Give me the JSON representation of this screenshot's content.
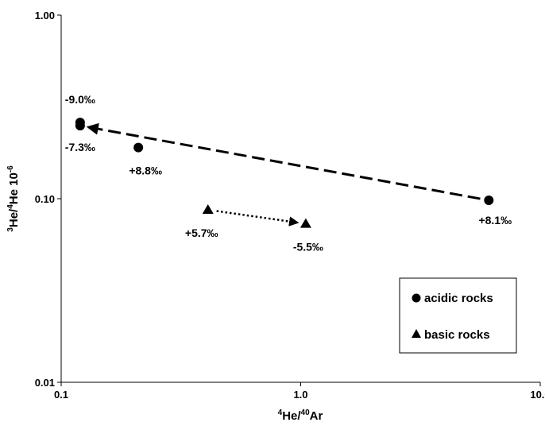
{
  "chart_data": {
    "type": "scatter",
    "xscale": "log",
    "yscale": "log",
    "xlim": [
      0.1,
      10.0
    ],
    "ylim": [
      0.01,
      1.0
    ],
    "grid": false,
    "legend_position": "bottom-right",
    "xlabel": {
      "sup1": "4",
      "t1": "He/",
      "sup2": "40",
      "t2": "Ar"
    },
    "ylabel": {
      "sup1": "3",
      "t1": "He/",
      "sup2": "4",
      "t2": "He 10",
      "sup3": "-6"
    },
    "xticks": [
      {
        "value": 0.1,
        "label": "0.1"
      },
      {
        "value": 1.0,
        "label": "1.0"
      },
      {
        "value": 10.0,
        "label": "10.0"
      }
    ],
    "yticks": [
      {
        "value": 0.01,
        "label": "0.01"
      },
      {
        "value": 0.1,
        "label": "0.10"
      },
      {
        "value": 1.0,
        "label": "1.00"
      }
    ],
    "series": [
      {
        "name": "acidic rocks",
        "marker": "circle",
        "color": "#000000",
        "points": [
          {
            "x": 0.12,
            "y": 0.26,
            "label": "-9.0‰"
          },
          {
            "x": 0.12,
            "y": 0.25,
            "label": "-7.3‰"
          },
          {
            "x": 0.21,
            "y": 0.19,
            "label": "+8.8‰"
          },
          {
            "x": 6.1,
            "y": 0.098,
            "label": "+8.1‰"
          }
        ]
      },
      {
        "name": "basic rocks",
        "marker": "triangle",
        "color": "#000000",
        "points": [
          {
            "x": 0.41,
            "y": 0.087,
            "label": "+5.7‰"
          },
          {
            "x": 1.05,
            "y": 0.073,
            "label": "-5.5‰"
          }
        ]
      }
    ],
    "arrows": [
      {
        "style": "dashed",
        "from": {
          "x": 6.1,
          "y": 0.098
        },
        "to": {
          "x": 0.12,
          "y": 0.25
        }
      },
      {
        "style": "dotted",
        "from": {
          "x": 0.41,
          "y": 0.087
        },
        "to": {
          "x": 1.05,
          "y": 0.073
        }
      }
    ]
  }
}
